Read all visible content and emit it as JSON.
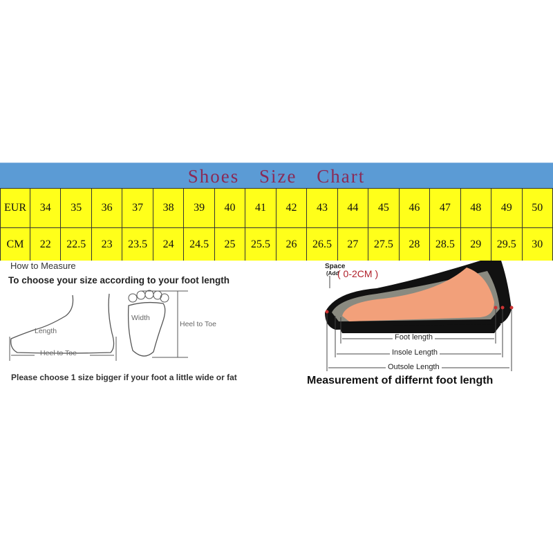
{
  "title": "Shoes Size Chart",
  "table": {
    "rows": [
      {
        "label": "EUR",
        "values": [
          "34",
          "35",
          "36",
          "37",
          "38",
          "39",
          "40",
          "41",
          "42",
          "43",
          "44",
          "45",
          "46",
          "47",
          "48",
          "49",
          "50"
        ]
      },
      {
        "label": "CM",
        "values": [
          "22",
          "22.5",
          "23",
          "23.5",
          "24",
          "24.5",
          "25",
          "25.5",
          "26",
          "26.5",
          "27",
          "27.5",
          "28",
          "28.5",
          "29",
          "29.5",
          "30"
        ]
      }
    ]
  },
  "how_to_measure": {
    "heading": "How to Measure",
    "subheading": "To choose your size according to your foot length",
    "length_label": "Length",
    "heel_to_toe_label": "Heel to Toe",
    "width_label": "Width",
    "heel_to_toe_label_2": "Heel to Toe",
    "note": "Please choose 1 size bigger if your foot a little wide or fat"
  },
  "foot_length": {
    "space_label": "Space",
    "add_label": "(Add",
    "space_value": "( 0-2CM )",
    "foot_length": "Foot length",
    "insole_length": "Insole Length",
    "outsole_length": "Outsole Length",
    "caption": "Measurement of differnt foot length"
  },
  "colors": {
    "banner": "#5b9bd5",
    "table_bg": "#ffff1a",
    "title": "#8b2a55",
    "space_value": "#b0202a"
  }
}
